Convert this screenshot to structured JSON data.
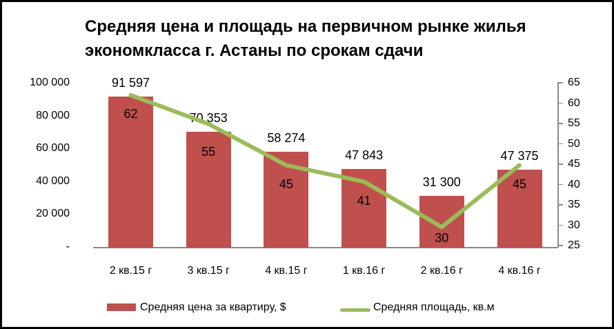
{
  "chart_data": {
    "type": "bar+line combo",
    "title": "Средняя цена и площадь на первичном рынке жилья экономкласса г. Астаны по срокам сдачи",
    "title_lines": {
      "line1": "Средняя цена и площадь на первичном рынке жилья",
      "line2": "экономкласса г. Астаны по срокам сдачи"
    },
    "categories": [
      "2 кв.15 г",
      "3 кв.15 г",
      "4 кв.15 г",
      "1 кв.16 г",
      "2 кв.16 г",
      "4 кв.16 г"
    ],
    "series": [
      {
        "name": "Средняя цена за квартиру, $",
        "type": "bar",
        "axis": "left",
        "color": "#C0504D",
        "values": [
          91597,
          70353,
          58274,
          47843,
          31300,
          47375
        ],
        "value_labels": [
          "91 597",
          "70 353",
          "58 274",
          "47 843",
          "31 300",
          "47 375"
        ]
      },
      {
        "name": "Средняя площадь, кв.м",
        "type": "line",
        "axis": "right",
        "color": "#9BBB59",
        "values": [
          62,
          55,
          45,
          41,
          30,
          45
        ],
        "value_labels": [
          "62",
          "55",
          "45",
          "41",
          "30",
          "45"
        ]
      }
    ],
    "left_axis": {
      "min": 0,
      "max": 100000,
      "tick_labels": [
        "100 000",
        "80 000",
        "60 000",
        "40 000",
        "20 000",
        "-"
      ]
    },
    "right_axis": {
      "min": 25,
      "max": 65,
      "tick_labels": [
        "65",
        "60",
        "55",
        "50",
        "45",
        "40",
        "35",
        "30",
        "25"
      ]
    },
    "grid": "off",
    "legend_position": "bottom",
    "axis_color": "#898989",
    "background": "#ffffff",
    "border_color": "#000000"
  }
}
